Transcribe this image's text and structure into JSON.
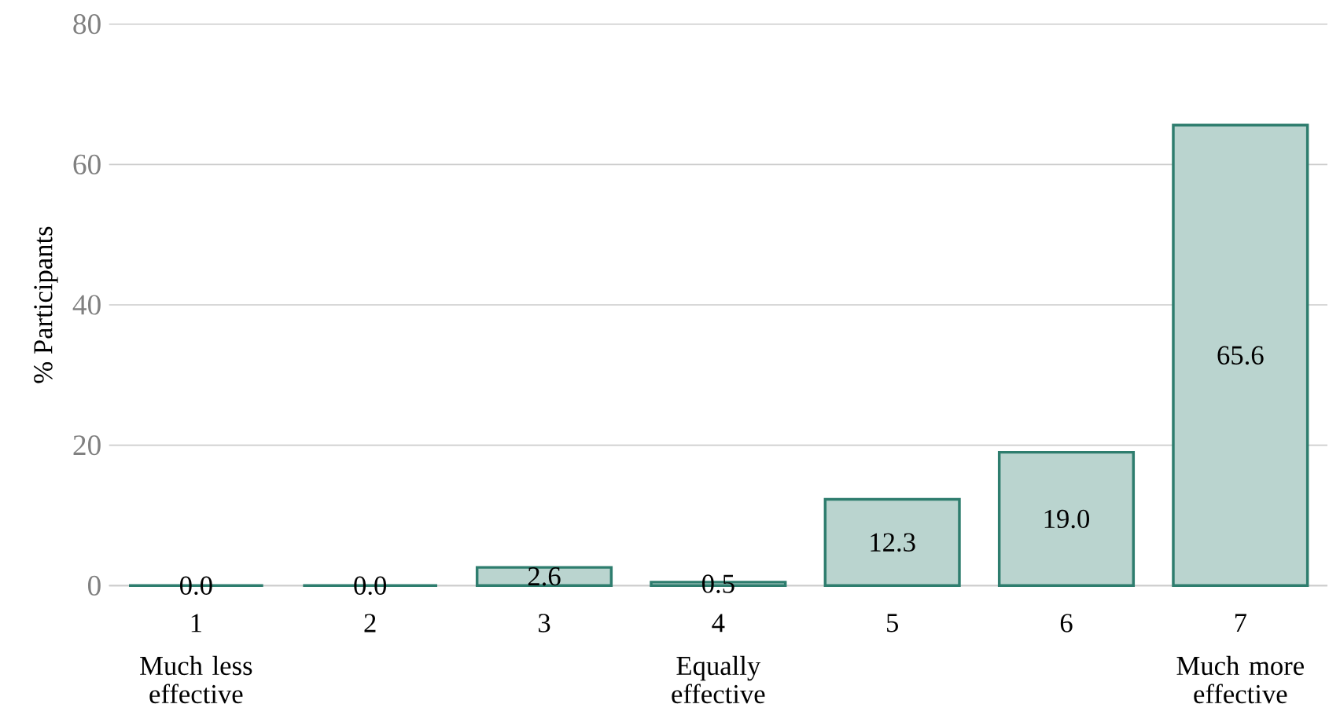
{
  "chart_data": {
    "type": "bar",
    "ylabel": "% Participants",
    "categories": [
      "1",
      "2",
      "3",
      "4",
      "5",
      "6",
      "7"
    ],
    "values": [
      0.0,
      0.0,
      2.6,
      0.5,
      12.3,
      19.0,
      65.6
    ],
    "value_labels": [
      "0.0",
      "0.0",
      "2.6",
      "0.5",
      "12.3",
      "19.0",
      "65.6"
    ],
    "color": "#2e7d6e",
    "ylim": [
      0,
      80
    ],
    "yticks": [
      0,
      20,
      40,
      60,
      80
    ],
    "grid": "y",
    "annotations": [
      "Much less effective",
      "Equally effective",
      "Much more effective"
    ]
  }
}
